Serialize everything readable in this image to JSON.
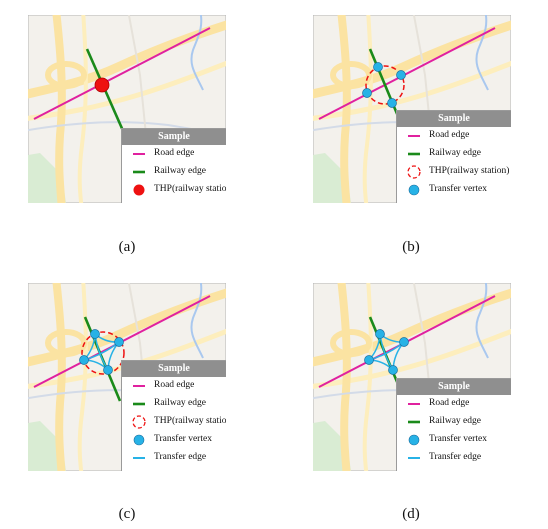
{
  "colors": {
    "road_edge": "#e0219f",
    "railway_edge": "#1a8a1a",
    "thp_station": "#ee1111",
    "transfer_vertex": "#27b2e6",
    "transfer_edge": "#27b2e6",
    "legend_header": "#8f8f8f"
  },
  "panels": [
    {
      "caption": "(a)",
      "legend": {
        "title": "Sample",
        "items": [
          {
            "icon": "road-edge-line-icon",
            "label": "Road edge"
          },
          {
            "icon": "railway-edge-line-icon",
            "label": "Railway edge"
          },
          {
            "icon": "thp-filled-circle-icon",
            "label": "THP(railway station)"
          }
        ]
      }
    },
    {
      "caption": "(b)",
      "legend": {
        "title": "Sample",
        "items": [
          {
            "icon": "road-edge-line-icon",
            "label": "Road edge"
          },
          {
            "icon": "railway-edge-line-icon",
            "label": "Railway edge"
          },
          {
            "icon": "thp-dashed-circle-icon",
            "label": "THP(railway station)"
          },
          {
            "icon": "transfer-vertex-icon",
            "label": "Transfer vertex"
          }
        ]
      }
    },
    {
      "caption": "(c)",
      "legend": {
        "title": "Sample",
        "items": [
          {
            "icon": "road-edge-line-icon",
            "label": "Road edge"
          },
          {
            "icon": "railway-edge-line-icon",
            "label": "Railway edge"
          },
          {
            "icon": "thp-dashed-circle-icon",
            "label": "THP(railway station)"
          },
          {
            "icon": "transfer-vertex-icon",
            "label": "Transfer vertex"
          },
          {
            "icon": "transfer-edge-line-icon",
            "label": "Transfer edge"
          }
        ]
      }
    },
    {
      "caption": "(d)",
      "legend": {
        "title": "Sample",
        "items": [
          {
            "icon": "road-edge-line-icon",
            "label": "Road edge"
          },
          {
            "icon": "railway-edge-line-icon",
            "label": "Railway edge"
          },
          {
            "icon": "transfer-vertex-icon",
            "label": "Transfer vertex"
          },
          {
            "icon": "transfer-edge-line-icon",
            "label": "Transfer edge"
          }
        ]
      }
    }
  ]
}
